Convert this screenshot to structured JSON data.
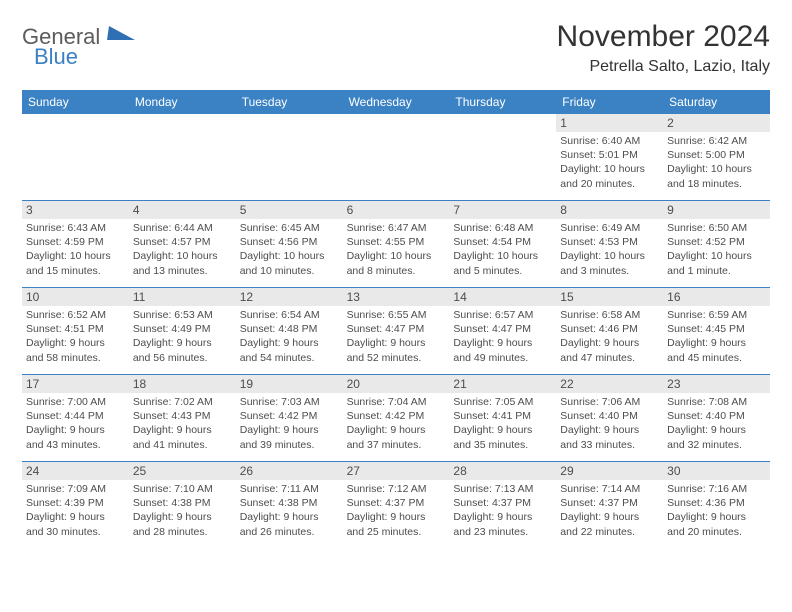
{
  "logo": {
    "text1": "General",
    "text2": "Blue"
  },
  "title": "November 2024",
  "subtitle": "Petrella Salto, Lazio, Italy",
  "colors": {
    "header_bg": "#3b82c4",
    "header_text": "#ffffff",
    "daynum_bg": "#e9e9e9",
    "text": "#4d4d4d",
    "rule": "#3b82c4"
  },
  "weekdays": [
    "Sunday",
    "Monday",
    "Tuesday",
    "Wednesday",
    "Thursday",
    "Friday",
    "Saturday"
  ],
  "weeks": [
    [
      {
        "n": "",
        "sunrise": "",
        "sunset": "",
        "daylight1": "",
        "daylight2": ""
      },
      {
        "n": "",
        "sunrise": "",
        "sunset": "",
        "daylight1": "",
        "daylight2": ""
      },
      {
        "n": "",
        "sunrise": "",
        "sunset": "",
        "daylight1": "",
        "daylight2": ""
      },
      {
        "n": "",
        "sunrise": "",
        "sunset": "",
        "daylight1": "",
        "daylight2": ""
      },
      {
        "n": "",
        "sunrise": "",
        "sunset": "",
        "daylight1": "",
        "daylight2": ""
      },
      {
        "n": "1",
        "sunrise": "Sunrise: 6:40 AM",
        "sunset": "Sunset: 5:01 PM",
        "daylight1": "Daylight: 10 hours",
        "daylight2": "and 20 minutes."
      },
      {
        "n": "2",
        "sunrise": "Sunrise: 6:42 AM",
        "sunset": "Sunset: 5:00 PM",
        "daylight1": "Daylight: 10 hours",
        "daylight2": "and 18 minutes."
      }
    ],
    [
      {
        "n": "3",
        "sunrise": "Sunrise: 6:43 AM",
        "sunset": "Sunset: 4:59 PM",
        "daylight1": "Daylight: 10 hours",
        "daylight2": "and 15 minutes."
      },
      {
        "n": "4",
        "sunrise": "Sunrise: 6:44 AM",
        "sunset": "Sunset: 4:57 PM",
        "daylight1": "Daylight: 10 hours",
        "daylight2": "and 13 minutes."
      },
      {
        "n": "5",
        "sunrise": "Sunrise: 6:45 AM",
        "sunset": "Sunset: 4:56 PM",
        "daylight1": "Daylight: 10 hours",
        "daylight2": "and 10 minutes."
      },
      {
        "n": "6",
        "sunrise": "Sunrise: 6:47 AM",
        "sunset": "Sunset: 4:55 PM",
        "daylight1": "Daylight: 10 hours",
        "daylight2": "and 8 minutes."
      },
      {
        "n": "7",
        "sunrise": "Sunrise: 6:48 AM",
        "sunset": "Sunset: 4:54 PM",
        "daylight1": "Daylight: 10 hours",
        "daylight2": "and 5 minutes."
      },
      {
        "n": "8",
        "sunrise": "Sunrise: 6:49 AM",
        "sunset": "Sunset: 4:53 PM",
        "daylight1": "Daylight: 10 hours",
        "daylight2": "and 3 minutes."
      },
      {
        "n": "9",
        "sunrise": "Sunrise: 6:50 AM",
        "sunset": "Sunset: 4:52 PM",
        "daylight1": "Daylight: 10 hours",
        "daylight2": "and 1 minute."
      }
    ],
    [
      {
        "n": "10",
        "sunrise": "Sunrise: 6:52 AM",
        "sunset": "Sunset: 4:51 PM",
        "daylight1": "Daylight: 9 hours",
        "daylight2": "and 58 minutes."
      },
      {
        "n": "11",
        "sunrise": "Sunrise: 6:53 AM",
        "sunset": "Sunset: 4:49 PM",
        "daylight1": "Daylight: 9 hours",
        "daylight2": "and 56 minutes."
      },
      {
        "n": "12",
        "sunrise": "Sunrise: 6:54 AM",
        "sunset": "Sunset: 4:48 PM",
        "daylight1": "Daylight: 9 hours",
        "daylight2": "and 54 minutes."
      },
      {
        "n": "13",
        "sunrise": "Sunrise: 6:55 AM",
        "sunset": "Sunset: 4:47 PM",
        "daylight1": "Daylight: 9 hours",
        "daylight2": "and 52 minutes."
      },
      {
        "n": "14",
        "sunrise": "Sunrise: 6:57 AM",
        "sunset": "Sunset: 4:47 PM",
        "daylight1": "Daylight: 9 hours",
        "daylight2": "and 49 minutes."
      },
      {
        "n": "15",
        "sunrise": "Sunrise: 6:58 AM",
        "sunset": "Sunset: 4:46 PM",
        "daylight1": "Daylight: 9 hours",
        "daylight2": "and 47 minutes."
      },
      {
        "n": "16",
        "sunrise": "Sunrise: 6:59 AM",
        "sunset": "Sunset: 4:45 PM",
        "daylight1": "Daylight: 9 hours",
        "daylight2": "and 45 minutes."
      }
    ],
    [
      {
        "n": "17",
        "sunrise": "Sunrise: 7:00 AM",
        "sunset": "Sunset: 4:44 PM",
        "daylight1": "Daylight: 9 hours",
        "daylight2": "and 43 minutes."
      },
      {
        "n": "18",
        "sunrise": "Sunrise: 7:02 AM",
        "sunset": "Sunset: 4:43 PM",
        "daylight1": "Daylight: 9 hours",
        "daylight2": "and 41 minutes."
      },
      {
        "n": "19",
        "sunrise": "Sunrise: 7:03 AM",
        "sunset": "Sunset: 4:42 PM",
        "daylight1": "Daylight: 9 hours",
        "daylight2": "and 39 minutes."
      },
      {
        "n": "20",
        "sunrise": "Sunrise: 7:04 AM",
        "sunset": "Sunset: 4:42 PM",
        "daylight1": "Daylight: 9 hours",
        "daylight2": "and 37 minutes."
      },
      {
        "n": "21",
        "sunrise": "Sunrise: 7:05 AM",
        "sunset": "Sunset: 4:41 PM",
        "daylight1": "Daylight: 9 hours",
        "daylight2": "and 35 minutes."
      },
      {
        "n": "22",
        "sunrise": "Sunrise: 7:06 AM",
        "sunset": "Sunset: 4:40 PM",
        "daylight1": "Daylight: 9 hours",
        "daylight2": "and 33 minutes."
      },
      {
        "n": "23",
        "sunrise": "Sunrise: 7:08 AM",
        "sunset": "Sunset: 4:40 PM",
        "daylight1": "Daylight: 9 hours",
        "daylight2": "and 32 minutes."
      }
    ],
    [
      {
        "n": "24",
        "sunrise": "Sunrise: 7:09 AM",
        "sunset": "Sunset: 4:39 PM",
        "daylight1": "Daylight: 9 hours",
        "daylight2": "and 30 minutes."
      },
      {
        "n": "25",
        "sunrise": "Sunrise: 7:10 AM",
        "sunset": "Sunset: 4:38 PM",
        "daylight1": "Daylight: 9 hours",
        "daylight2": "and 28 minutes."
      },
      {
        "n": "26",
        "sunrise": "Sunrise: 7:11 AM",
        "sunset": "Sunset: 4:38 PM",
        "daylight1": "Daylight: 9 hours",
        "daylight2": "and 26 minutes."
      },
      {
        "n": "27",
        "sunrise": "Sunrise: 7:12 AM",
        "sunset": "Sunset: 4:37 PM",
        "daylight1": "Daylight: 9 hours",
        "daylight2": "and 25 minutes."
      },
      {
        "n": "28",
        "sunrise": "Sunrise: 7:13 AM",
        "sunset": "Sunset: 4:37 PM",
        "daylight1": "Daylight: 9 hours",
        "daylight2": "and 23 minutes."
      },
      {
        "n": "29",
        "sunrise": "Sunrise: 7:14 AM",
        "sunset": "Sunset: 4:37 PM",
        "daylight1": "Daylight: 9 hours",
        "daylight2": "and 22 minutes."
      },
      {
        "n": "30",
        "sunrise": "Sunrise: 7:16 AM",
        "sunset": "Sunset: 4:36 PM",
        "daylight1": "Daylight: 9 hours",
        "daylight2": "and 20 minutes."
      }
    ]
  ]
}
